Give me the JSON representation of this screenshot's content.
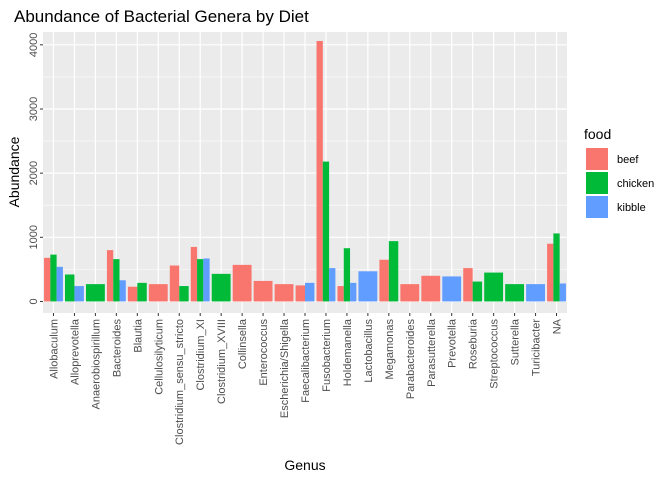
{
  "chart_data": {
    "type": "bar",
    "title": "Abundance of Bacterial Genera by Diet",
    "xlabel": "Genus",
    "ylabel": "Abundance",
    "ylim": [
      -180,
      4200
    ],
    "yticks": [
      0,
      1000,
      2000,
      3000,
      4000
    ],
    "grid": true,
    "legend": {
      "title": "food",
      "position": "right"
    },
    "categories": [
      "Allobaculum",
      "Alloprevotella",
      "Anaerobiospirillum",
      "Bacteroides",
      "Blautia",
      "Cellulosilyticum",
      "Clostridium_sensu_stricto",
      "Clostridium_XI",
      "Clostridium_XVIII",
      "Collinsella",
      "Enterococcus",
      "Escherichia/Shigella",
      "Faecalibacterium",
      "Fusobacterium",
      "Holdemanella",
      "Lactobacillus",
      "Megamonas",
      "Parabacteroides",
      "Parasutterella",
      "Prevotella",
      "Roseburia",
      "Streptococcus",
      "Sutterella",
      "Turicibacter",
      "NA"
    ],
    "series": [
      {
        "name": "beef",
        "color": "#F8766D",
        "values": [
          680,
          null,
          null,
          800,
          230,
          270,
          560,
          850,
          null,
          570,
          320,
          270,
          250,
          4060,
          240,
          null,
          650,
          270,
          400,
          null,
          520,
          null,
          null,
          null,
          900
        ]
      },
      {
        "name": "chicken",
        "color": "#00BA38",
        "values": [
          730,
          420,
          270,
          660,
          290,
          null,
          240,
          660,
          430,
          null,
          null,
          null,
          null,
          2180,
          830,
          null,
          940,
          null,
          null,
          null,
          310,
          450,
          270,
          null,
          1060
        ]
      },
      {
        "name": "kibble",
        "color": "#619CFF",
        "values": [
          540,
          240,
          null,
          330,
          null,
          null,
          null,
          670,
          null,
          null,
          null,
          null,
          290,
          520,
          290,
          470,
          null,
          null,
          null,
          390,
          null,
          null,
          null,
          270,
          280
        ]
      }
    ]
  }
}
